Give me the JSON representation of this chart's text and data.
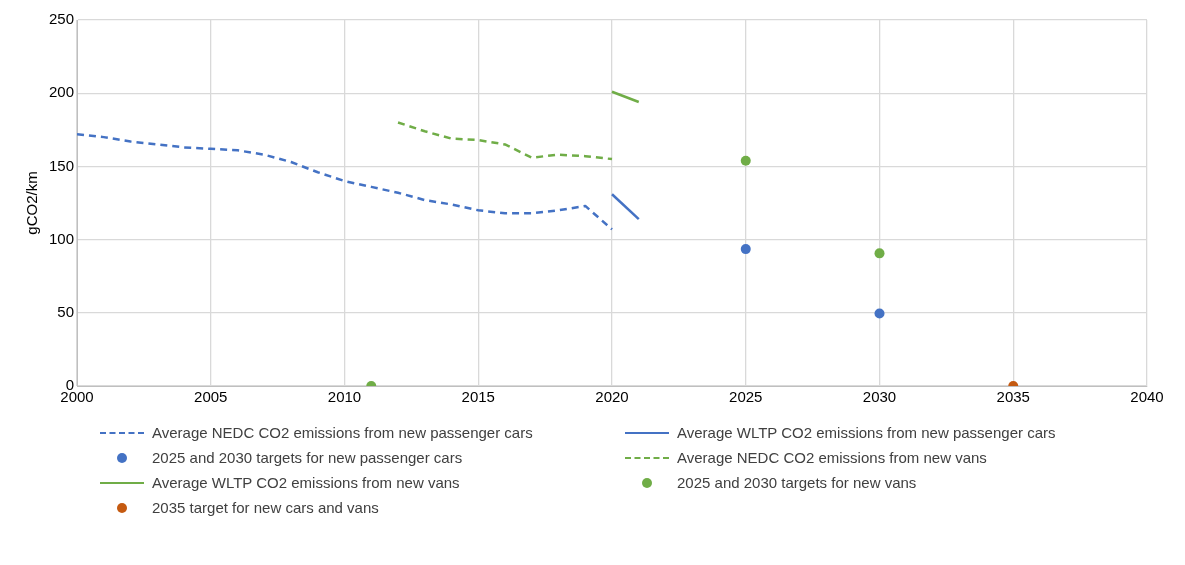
{
  "chart_data": {
    "type": "line",
    "ylabel": "gCO2/km",
    "xlim": [
      2000,
      2040
    ],
    "xticks": [
      2000,
      2005,
      2010,
      2015,
      2020,
      2025,
      2030,
      2035,
      2040
    ],
    "ylim": [
      0,
      250
    ],
    "yticks": [
      0,
      50,
      100,
      150,
      200,
      250
    ],
    "grid": true,
    "legend": "bottom",
    "series": [
      {
        "name": "Average NEDC CO2 emissions from new passenger cars",
        "line_style": "dashed",
        "color": "#4472c4",
        "x": [
          2000,
          2001,
          2002,
          2003,
          2004,
          2005,
          2006,
          2007,
          2008,
          2009,
          2010,
          2011,
          2012,
          2013,
          2014,
          2015,
          2016,
          2017,
          2018,
          2019,
          2020
        ],
        "values": [
          172,
          170,
          167,
          165,
          163,
          162,
          161,
          158,
          153,
          146,
          140,
          136,
          132,
          127,
          124,
          120,
          118,
          118,
          120,
          123,
          107
        ]
      },
      {
        "name": "Average WLTP CO2 emissions from new passenger cars",
        "line_style": "solid",
        "color": "#4472c4",
        "x": [
          2020,
          2021
        ],
        "values": [
          131,
          114
        ]
      },
      {
        "name": "2025 and 2030 targets for new passenger cars",
        "type": "scatter",
        "marker": "circle",
        "color": "#4472c4",
        "x": [
          2025,
          2030
        ],
        "values": [
          93.5,
          49.5
        ]
      },
      {
        "name": "Average NEDC CO2 emissions from new vans",
        "line_style": "dashed",
        "color": "#70ad47",
        "x": [
          2012,
          2013,
          2014,
          2015,
          2016,
          2017,
          2018,
          2019,
          2020
        ],
        "values": [
          180,
          174,
          169,
          168,
          165,
          156,
          158,
          157,
          155
        ]
      },
      {
        "name": "Average WLTP CO2 emissions from new vans",
        "line_style": "solid",
        "color": "#70ad47",
        "x": [
          2020,
          2021
        ],
        "values": [
          201,
          194
        ]
      },
      {
        "name": "2025 and 2030 targets for new vans",
        "type": "scatter",
        "marker": "circle",
        "color": "#70ad47",
        "x": [
          2011,
          2025,
          2030
        ],
        "values": [
          0,
          153.9,
          90.6
        ]
      },
      {
        "name": "2035 target for new cars and vans",
        "type": "scatter",
        "marker": "circle",
        "color": "#c55a11",
        "x": [
          2035
        ],
        "values": [
          0
        ]
      }
    ]
  }
}
